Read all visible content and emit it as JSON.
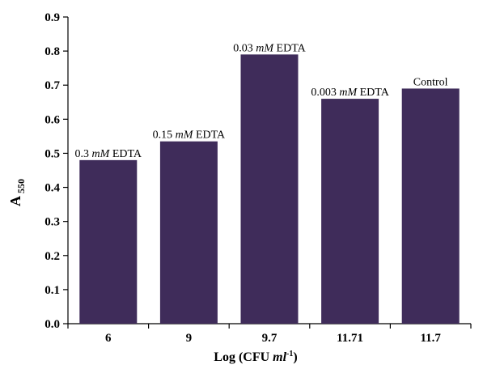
{
  "chart_data": {
    "type": "bar",
    "categories": [
      "6",
      "9",
      "9.7",
      "11.71",
      "11.7"
    ],
    "values": [
      0.48,
      0.535,
      0.79,
      0.66,
      0.69
    ],
    "bar_labels": [
      {
        "prefix": "0.3 ",
        "unit": "mM",
        "suffix": " EDTA"
      },
      {
        "prefix": "0.15 ",
        "unit": "mM",
        "suffix": " EDTA"
      },
      {
        "prefix": "0.03 ",
        "unit": "mM",
        "suffix": " EDTA"
      },
      {
        "prefix": "0.003 ",
        "unit": "mM",
        "suffix": " EDTA"
      },
      {
        "prefix": "Control",
        "unit": "",
        "suffix": ""
      }
    ],
    "title": "",
    "xlabel": {
      "main": "Log (CFU ",
      "unit": "ml",
      "sup": "-1",
      "close": ")"
    },
    "ylabel": {
      "main": "A",
      "sub": "550"
    },
    "ylim": [
      0,
      0.9
    ],
    "yticks": [
      "0.0",
      "0.1",
      "0.2",
      "0.3",
      "0.4",
      "0.5",
      "0.6",
      "0.7",
      "0.8",
      "0.9"
    ],
    "bar_color": "#3f2c5a",
    "grid": false,
    "legend": "none"
  }
}
